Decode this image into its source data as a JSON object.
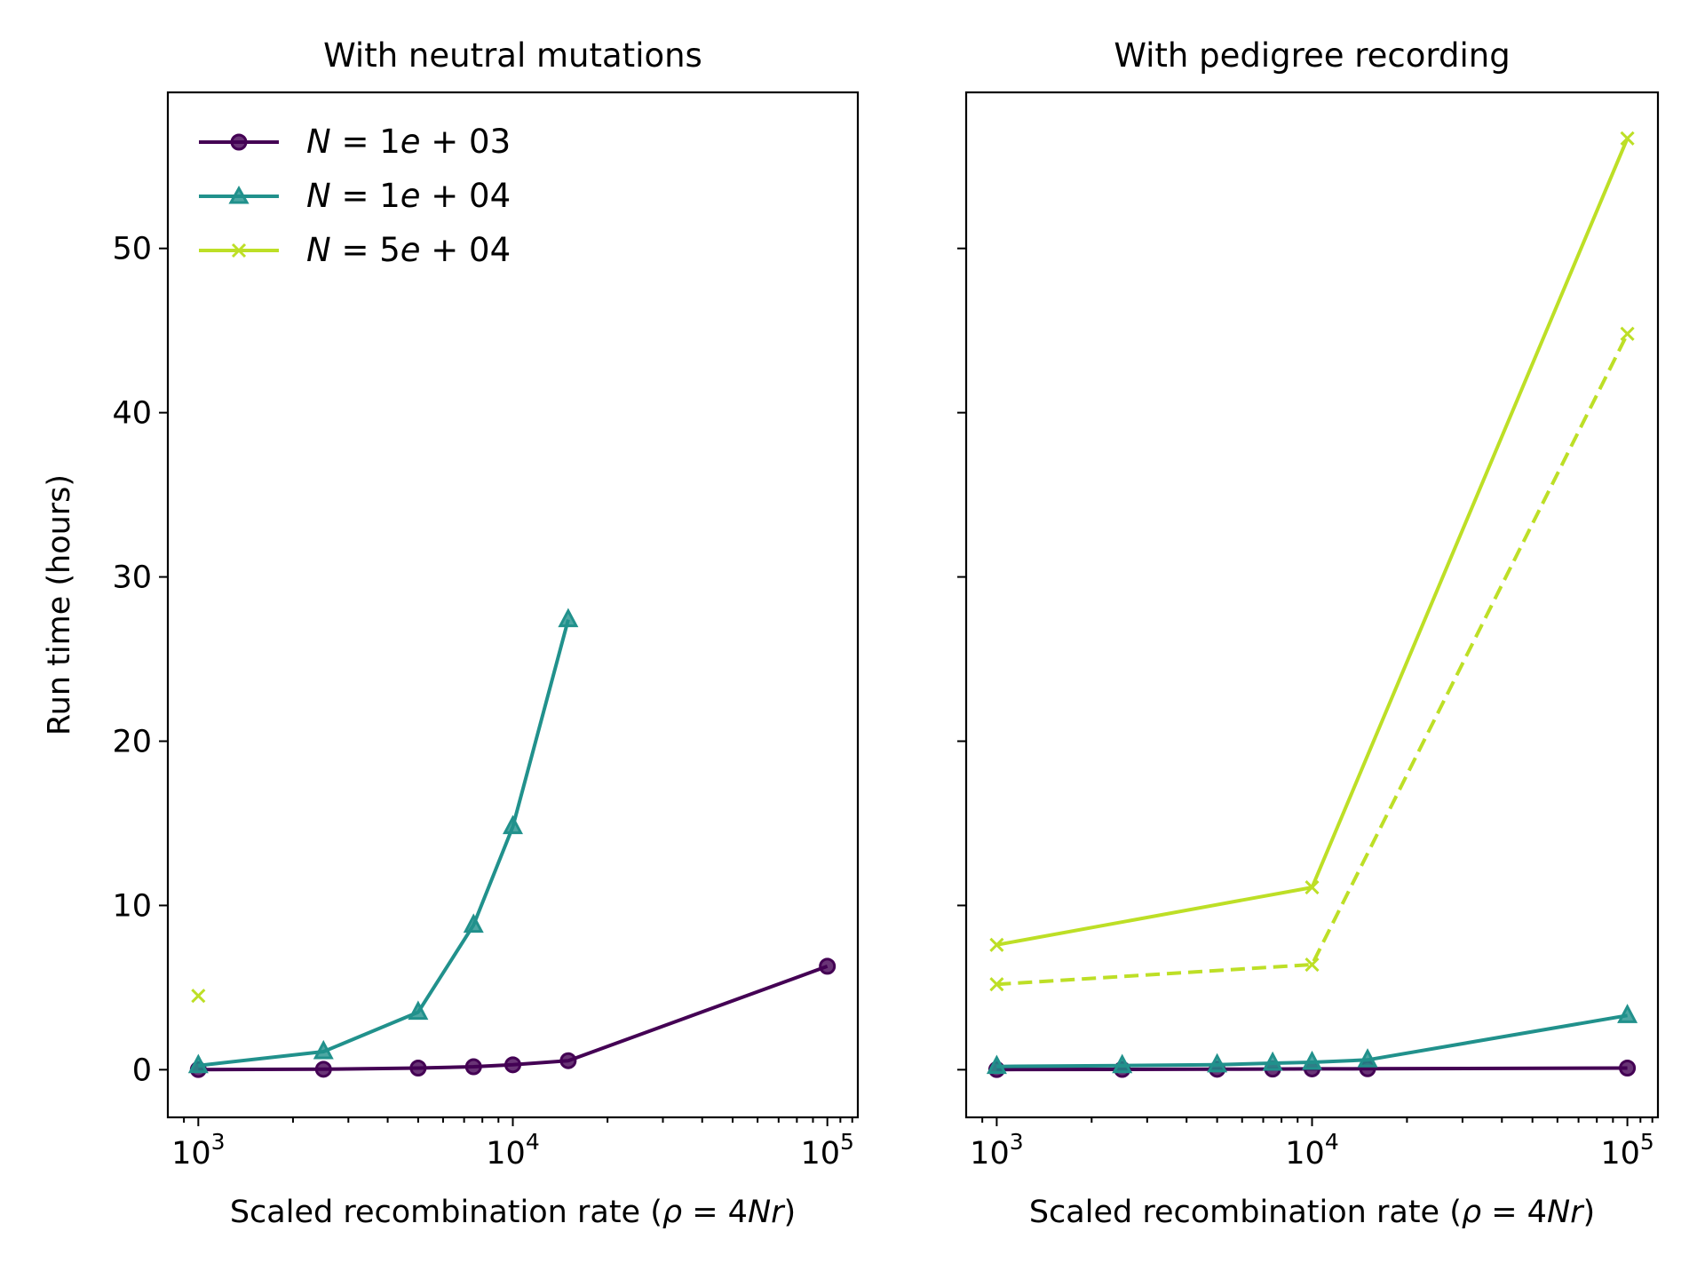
{
  "chart_data": [
    {
      "type": "line",
      "title": "With neutral mutations",
      "xlabel": "Scaled recombination rate ($\\rho = 4Nr$)",
      "xlabel_parts": [
        "Scaled recombination rate (",
        "ρ",
        " = 4",
        "Nr",
        ")"
      ],
      "ylabel": "Run time (hours)",
      "x_scale": "log",
      "xlim": [
        800,
        125000
      ],
      "ylim": [
        -2.9,
        59.5
      ],
      "x_ticks": [
        {
          "base": "10",
          "exp": "3"
        },
        {
          "base": "10",
          "exp": "4"
        },
        {
          "base": "10",
          "exp": "5"
        }
      ],
      "y_ticks": [
        "0",
        "10",
        "20",
        "30",
        "40",
        "50"
      ],
      "legend_position": "upper-left",
      "series": [
        {
          "name": "N = 1e + 03",
          "color": "#440154",
          "marker": "circle",
          "dash": "solid",
          "x": [
            1000,
            2500,
            5000,
            7500,
            10000,
            15000,
            100000
          ],
          "y": [
            0.01,
            0.03,
            0.1,
            0.18,
            0.3,
            0.55,
            6.3
          ]
        },
        {
          "name": "N = 1e + 04",
          "color": "#21918c",
          "marker": "triangle",
          "dash": "solid",
          "x": [
            1000,
            2500,
            5000,
            7500,
            10000,
            15000
          ],
          "y": [
            0.25,
            1.1,
            3.5,
            8.8,
            14.8,
            27.4
          ]
        },
        {
          "name": "N = 5e + 04",
          "color": "#bddf26",
          "marker": "x",
          "dash": "solid",
          "x": [
            1000
          ],
          "y": [
            4.5
          ]
        }
      ]
    },
    {
      "type": "line",
      "title": "With pedigree recording",
      "xlabel": "Scaled recombination rate ($\\rho = 4Nr$)",
      "xlabel_parts": [
        "Scaled recombination rate (",
        "ρ",
        " = 4",
        "Nr",
        ")"
      ],
      "x_scale": "log",
      "xlim": [
        800,
        125000
      ],
      "ylim": [
        -2.9,
        59.5
      ],
      "x_ticks": [
        {
          "base": "10",
          "exp": "3"
        },
        {
          "base": "10",
          "exp": "4"
        },
        {
          "base": "10",
          "exp": "5"
        }
      ],
      "y_ticks_labeled": false,
      "series": [
        {
          "color": "#440154",
          "marker": "circle",
          "dash": "solid",
          "x": [
            1000,
            2500,
            5000,
            7500,
            10000,
            15000,
            100000
          ],
          "y": [
            0.01,
            0.02,
            0.03,
            0.04,
            0.05,
            0.06,
            0.1
          ]
        },
        {
          "color": "#21918c",
          "marker": "triangle",
          "dash": "solid",
          "x": [
            1000,
            2500,
            5000,
            7500,
            10000,
            15000,
            100000
          ],
          "y": [
            0.2,
            0.25,
            0.3,
            0.4,
            0.45,
            0.6,
            3.3
          ]
        },
        {
          "color": "#bddf26",
          "marker": "x",
          "dash": "solid",
          "x": [
            1000,
            10000,
            100000
          ],
          "y": [
            7.6,
            11.1,
            56.7
          ]
        },
        {
          "color": "#bddf26",
          "marker": "x",
          "dash": "dashed",
          "x": [
            1000,
            10000,
            100000
          ],
          "y": [
            5.2,
            6.4,
            44.8
          ]
        }
      ]
    }
  ]
}
